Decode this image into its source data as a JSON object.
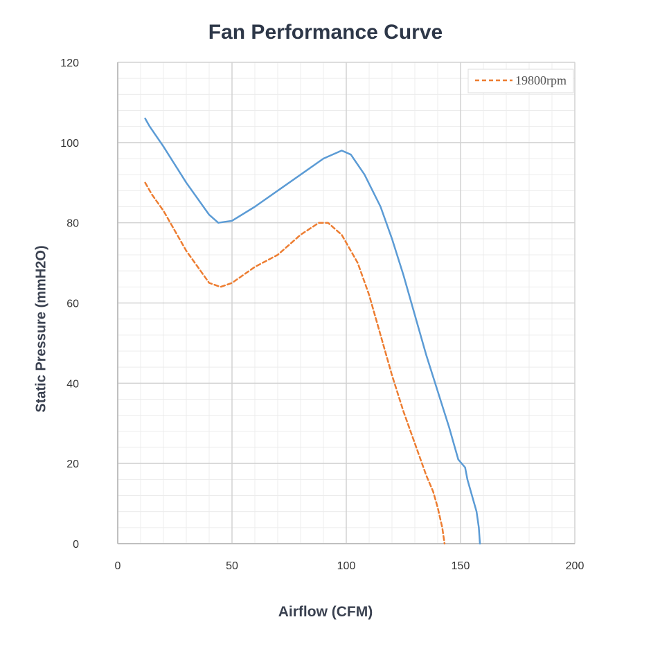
{
  "chart_data": {
    "type": "line",
    "title": "Fan Performance Curve",
    "xlabel": "Airflow (CFM)",
    "ylabel": "Static Pressure (mmH2O)",
    "xlim": [
      0,
      200
    ],
    "ylim": [
      0,
      120
    ],
    "x_ticks": [
      "0",
      "50",
      "100",
      "150",
      "200"
    ],
    "y_ticks": [
      "0",
      "20",
      "40",
      "60",
      "80",
      "100",
      "120"
    ],
    "grid": true,
    "legend_position": "top-right",
    "series": [
      {
        "color": "#5b9bd5",
        "style": "solid",
        "points": [
          [
            12,
            106
          ],
          [
            14,
            104
          ],
          [
            20,
            99
          ],
          [
            30,
            90
          ],
          [
            40,
            82
          ],
          [
            44,
            80
          ],
          [
            50,
            80.5
          ],
          [
            60,
            84
          ],
          [
            70,
            88
          ],
          [
            80,
            92
          ],
          [
            90,
            96
          ],
          [
            98,
            98
          ],
          [
            102,
            97
          ],
          [
            108,
            92
          ],
          [
            115,
            84
          ],
          [
            120,
            76
          ],
          [
            125,
            67
          ],
          [
            130,
            57
          ],
          [
            135,
            47
          ],
          [
            140,
            38
          ],
          [
            145,
            29
          ],
          [
            149,
            21
          ],
          [
            152,
            19
          ],
          [
            153,
            16
          ],
          [
            155,
            12
          ],
          [
            157,
            8
          ],
          [
            158,
            4
          ],
          [
            158.5,
            0
          ]
        ]
      },
      {
        "name": "19800rpm",
        "color": "#ed7d31",
        "style": "dashed",
        "points": [
          [
            12,
            90
          ],
          [
            15,
            87
          ],
          [
            20,
            83
          ],
          [
            30,
            73
          ],
          [
            40,
            65
          ],
          [
            45,
            64
          ],
          [
            50,
            65
          ],
          [
            60,
            69
          ],
          [
            70,
            72
          ],
          [
            80,
            77
          ],
          [
            88,
            80
          ],
          [
            92,
            80
          ],
          [
            98,
            77
          ],
          [
            105,
            70
          ],
          [
            110,
            62
          ],
          [
            115,
            52
          ],
          [
            120,
            42
          ],
          [
            125,
            33
          ],
          [
            130,
            25
          ],
          [
            135,
            17
          ],
          [
            138,
            13
          ],
          [
            140,
            9
          ],
          [
            142,
            4
          ],
          [
            143,
            0
          ]
        ]
      }
    ]
  }
}
